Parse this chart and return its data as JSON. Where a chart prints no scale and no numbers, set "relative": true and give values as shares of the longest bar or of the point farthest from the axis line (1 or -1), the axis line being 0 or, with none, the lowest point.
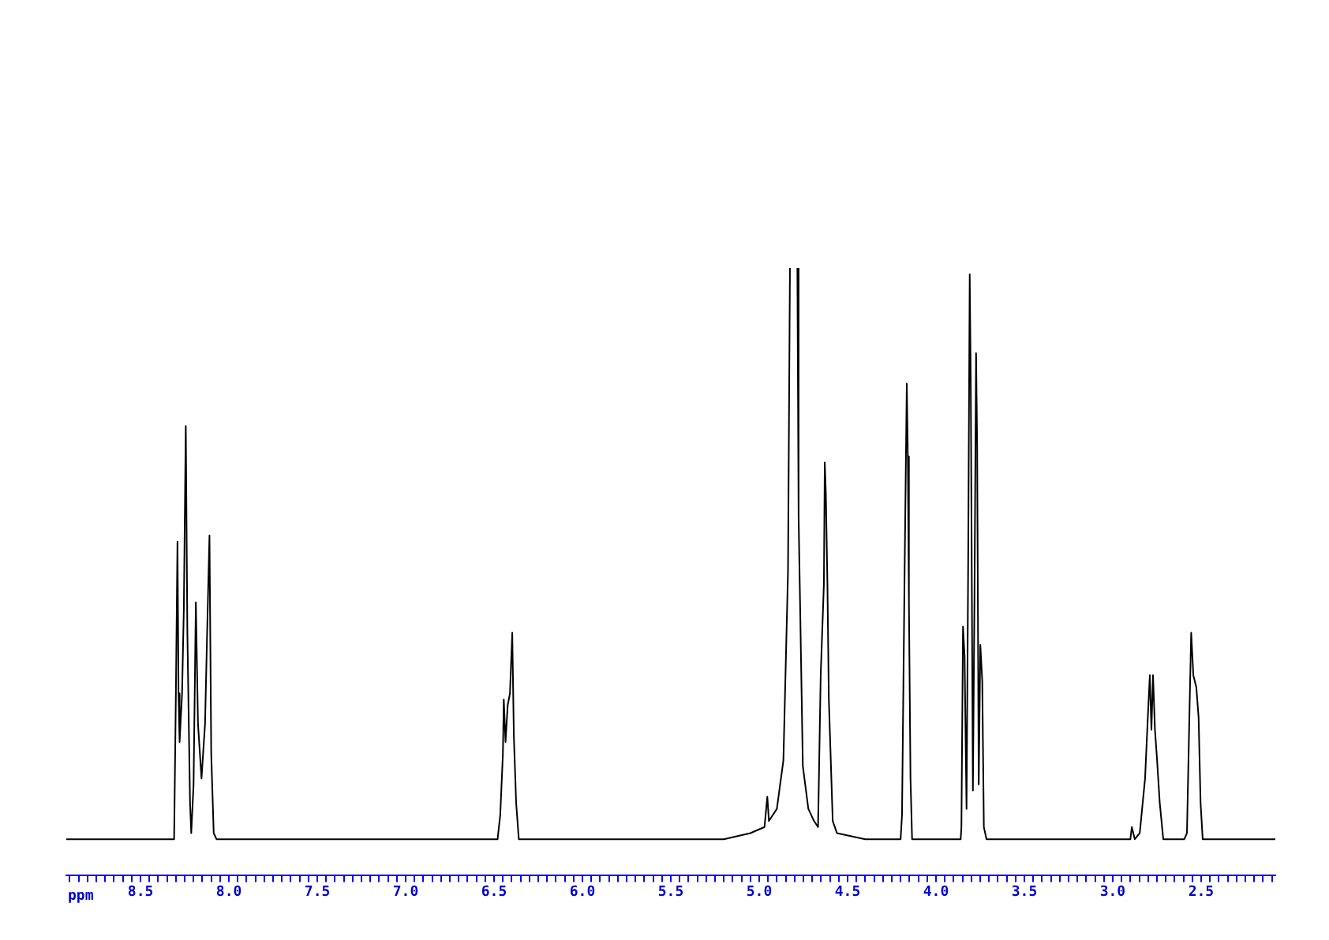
{
  "chart_data": {
    "type": "line",
    "relative": true,
    "xlabel": "ppm",
    "xlim": [
      8.92,
      2.08
    ],
    "xticks": [
      {
        "value": 8.9,
        "label": null
      },
      {
        "value": 8.85,
        "label": null
      },
      {
        "value": 8.8,
        "label": null
      },
      {
        "value": 8.75,
        "label": null
      },
      {
        "value": 8.7,
        "label": null
      },
      {
        "value": 8.65,
        "label": null
      },
      {
        "value": 8.6,
        "label": null
      },
      {
        "value": 8.55,
        "label": null
      },
      8.5,
      {
        "value": 8.45,
        "label": null
      },
      {
        "value": 8.4,
        "label": null
      },
      {
        "value": 8.35,
        "label": null
      },
      {
        "value": 8.3,
        "label": null
      },
      {
        "value": 8.25,
        "label": null
      },
      {
        "value": 8.2,
        "label": null
      },
      {
        "value": 8.15,
        "label": null
      },
      {
        "value": 8.1,
        "label": null
      },
      {
        "value": 8.05,
        "label": null
      },
      {
        "value": 8,
        "label": "8.0"
      },
      {
        "value": 7.95,
        "label": null
      },
      {
        "value": 7.9,
        "label": null
      },
      {
        "value": 7.85,
        "label": null
      },
      {
        "value": 7.8,
        "label": null
      },
      {
        "value": 7.75,
        "label": null
      },
      {
        "value": 7.7,
        "label": null
      },
      {
        "value": 7.65,
        "label": null
      },
      {
        "value": 7.6,
        "label": null
      },
      {
        "value": 7.55,
        "label": null
      },
      7.5,
      {
        "value": 7.45,
        "label": null
      },
      {
        "value": 7.4,
        "label": null
      },
      {
        "value": 7.35,
        "label": null
      },
      {
        "value": 7.3,
        "label": null
      },
      {
        "value": 7.25,
        "label": null
      },
      {
        "value": 7.2,
        "label": null
      },
      {
        "value": 7.15,
        "label": null
      },
      {
        "value": 7.1,
        "label": null
      },
      {
        "value": 7.05,
        "label": null
      },
      {
        "value": 7,
        "label": "7.0"
      },
      {
        "value": 6.95,
        "label": null
      },
      {
        "value": 6.9,
        "label": null
      },
      {
        "value": 6.85,
        "label": null
      },
      {
        "value": 6.8,
        "label": null
      },
      {
        "value": 6.75,
        "label": null
      },
      {
        "value": 6.7,
        "label": null
      },
      {
        "value": 6.65,
        "label": null
      },
      {
        "value": 6.6,
        "label": null
      },
      {
        "value": 6.55,
        "label": null
      },
      6.5,
      {
        "value": 6.45,
        "label": null
      },
      {
        "value": 6.4,
        "label": null
      },
      {
        "value": 6.35,
        "label": null
      },
      {
        "value": 6.3,
        "label": null
      },
      {
        "value": 6.25,
        "label": null
      },
      {
        "value": 6.2,
        "label": null
      },
      {
        "value": 6.15,
        "label": null
      },
      {
        "value": 6.1,
        "label": null
      },
      {
        "value": 6.05,
        "label": null
      },
      {
        "value": 6,
        "label": "6.0"
      },
      {
        "value": 5.95,
        "label": null
      },
      {
        "value": 5.9,
        "label": null
      },
      {
        "value": 5.85,
        "label": null
      },
      {
        "value": 5.8,
        "label": null
      },
      {
        "value": 5.75,
        "label": null
      },
      {
        "value": 5.7,
        "label": null
      },
      {
        "value": 5.65,
        "label": null
      },
      {
        "value": 5.6,
        "label": null
      },
      {
        "value": 5.55,
        "label": null
      },
      5.5,
      {
        "value": 5.45,
        "label": null
      },
      {
        "value": 5.4,
        "label": null
      },
      {
        "value": 5.35,
        "label": null
      },
      {
        "value": 5.3,
        "label": null
      },
      {
        "value": 5.25,
        "label": null
      },
      {
        "value": 5.2,
        "label": null
      },
      {
        "value": 5.15,
        "label": null
      },
      {
        "value": 5.1,
        "label": null
      },
      {
        "value": 5.05,
        "label": null
      },
      {
        "value": 5,
        "label": "5.0"
      },
      {
        "value": 4.95,
        "label": null
      },
      {
        "value": 4.9,
        "label": null
      },
      {
        "value": 4.85,
        "label": null
      },
      {
        "value": 4.8,
        "label": null
      },
      {
        "value": 4.75,
        "label": null
      },
      {
        "value": 4.7,
        "label": null
      },
      {
        "value": 4.65,
        "label": null
      },
      {
        "value": 4.6,
        "label": null
      },
      {
        "value": 4.55,
        "label": null
      },
      4.5,
      {
        "value": 4.45,
        "label": null
      },
      {
        "value": 4.4,
        "label": null
      },
      {
        "value": 4.35,
        "label": null
      },
      {
        "value": 4.3,
        "label": null
      },
      {
        "value": 4.25,
        "label": null
      },
      {
        "value": 4.2,
        "label": null
      },
      {
        "value": 4.15,
        "label": null
      },
      {
        "value": 4.1,
        "label": null
      },
      {
        "value": 4.05,
        "label": null
      },
      {
        "value": 4,
        "label": "4.0"
      },
      {
        "value": 3.95,
        "label": null
      },
      {
        "value": 3.9,
        "label": null
      },
      {
        "value": 3.85,
        "label": null
      },
      {
        "value": 3.8,
        "label": null
      },
      {
        "value": 3.75,
        "label": null
      },
      {
        "value": 3.7,
        "label": null
      },
      {
        "value": 3.65,
        "label": null
      },
      {
        "value": 3.6,
        "label": null
      },
      {
        "value": 3.55,
        "label": null
      },
      3.5,
      {
        "value": 3.45,
        "label": null
      },
      {
        "value": 3.4,
        "label": null
      },
      {
        "value": 3.35,
        "label": null
      },
      {
        "value": 3.3,
        "label": null
      },
      {
        "value": 3.25,
        "label": null
      },
      {
        "value": 3.2,
        "label": null
      },
      {
        "value": 3.15,
        "label": null
      },
      {
        "value": 3.1,
        "label": null
      },
      {
        "value": 3.05,
        "label": null
      },
      {
        "value": 3,
        "label": "3.0"
      },
      {
        "value": 2.95,
        "label": null
      },
      {
        "value": 2.9,
        "label": null
      },
      {
        "value": 2.85,
        "label": null
      },
      {
        "value": 2.8,
        "label": null
      },
      {
        "value": 2.75,
        "label": null
      },
      {
        "value": 2.7,
        "label": null
      },
      {
        "value": 2.65,
        "label": null
      },
      {
        "value": 2.6,
        "label": null
      },
      {
        "value": 2.55,
        "label": null
      },
      2.5,
      {
        "value": 2.45,
        "label": null
      },
      {
        "value": 2.4,
        "label": null
      },
      {
        "value": 2.35,
        "label": null
      },
      {
        "value": 2.3,
        "label": null
      },
      {
        "value": 2.25,
        "label": null
      },
      {
        "value": 2.2,
        "label": null
      },
      {
        "value": 2.15,
        "label": null
      },
      {
        "value": 2.1,
        "label": null
      }
    ],
    "x": [
      8.92,
      8.6,
      8.31,
      8.3,
      8.291,
      8.285,
      8.279,
      8.265,
      8.255,
      8.244,
      8.235,
      8.22,
      8.213,
      8.2,
      8.187,
      8.175,
      8.155,
      8.135,
      8.124,
      8.11,
      8.1,
      8.086,
      8.07,
      7.5,
      7.0,
      6.48,
      6.465,
      6.45,
      6.445,
      6.435,
      6.423,
      6.41,
      6.397,
      6.388,
      6.375,
      6.36,
      6.0,
      5.5,
      5.2,
      5.05,
      4.97,
      4.954,
      4.945,
      4.9,
      4.863,
      4.837,
      4.826,
      4.805,
      4.784,
      4.777,
      4.753,
      4.722,
      4.69,
      4.667,
      4.652,
      4.634,
      4.629,
      4.623,
      4.614,
      4.606,
      4.584,
      4.56,
      4.4,
      4.2,
      4.192,
      4.177,
      4.165,
      4.159,
      4.153,
      4.144,
      4.135,
      4.0,
      3.86,
      3.856,
      3.847,
      3.838,
      3.827,
      3.818,
      3.809,
      3.803,
      3.791,
      3.782,
      3.773,
      3.767,
      3.758,
      3.749,
      3.738,
      3.729,
      3.714,
      3.5,
      3.0,
      2.9,
      2.892,
      2.875,
      2.847,
      2.817,
      2.803,
      2.79,
      2.781,
      2.772,
      2.761,
      2.749,
      2.734,
      2.714,
      2.65,
      2.595,
      2.58,
      2.565,
      2.556,
      2.544,
      2.527,
      2.514,
      2.503,
      2.491,
      2.4,
      2.08
    ],
    "series": [
      {
        "color": "#000000",
        "values": [
          0.06,
          0.06,
          0.06,
          0.3,
          0.55,
          0.3,
          0.22,
          0.3,
          0.44,
          0.74,
          0.4,
          0.12,
          0.07,
          0.15,
          0.45,
          0.25,
          0.16,
          0.25,
          0.39,
          0.56,
          0.2,
          0.07,
          0.06,
          0.06,
          0.06,
          0.06,
          0.1,
          0.2,
          0.29,
          0.22,
          0.28,
          0.3,
          0.4,
          0.23,
          0.12,
          0.06,
          0.06,
          0.06,
          0.06,
          0.07,
          0.08,
          0.13,
          0.09,
          0.11,
          0.19,
          0.5,
          1,
          null,
          1,
          0.59,
          0.18,
          0.11,
          0.09,
          0.08,
          0.33,
          0.48,
          0.68,
          0.63,
          0.48,
          0.29,
          0.09,
          0.07,
          0.06,
          0.06,
          0.1,
          0.51,
          0.81,
          0.69,
          0.45,
          0.16,
          0.06,
          0.06,
          0.06,
          0.08,
          0.41,
          0.36,
          0.11,
          0.5,
          0.99,
          0.81,
          0.14,
          0.46,
          0.86,
          0.71,
          0.15,
          0.38,
          0.32,
          0.08,
          0.06,
          0.06,
          0.06,
          0.06,
          0.08,
          0.06,
          0.07,
          0.16,
          0.25,
          0.33,
          0.24,
          0.33,
          0.24,
          0.19,
          0.12,
          0.06,
          0.06,
          0.06,
          0.07,
          0.28,
          0.4,
          0.33,
          0.31,
          0.26,
          0.12,
          0.06,
          0.06,
          0.06
        ]
      }
    ],
    "legend": false,
    "grid": false,
    "marker": "none",
    "line_style": "solid"
  }
}
